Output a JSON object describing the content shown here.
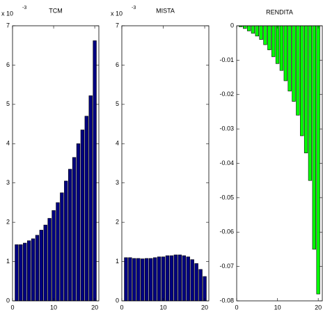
{
  "chart_data": [
    {
      "type": "bar",
      "title": "TCM",
      "multiplier": "x 10",
      "exponent": "-3",
      "color": "#000080",
      "x": [
        1,
        2,
        3,
        4,
        5,
        6,
        7,
        8,
        9,
        10,
        11,
        12,
        13,
        14,
        15,
        16,
        17,
        18,
        19,
        20
      ],
      "values": [
        1.43,
        1.43,
        1.47,
        1.53,
        1.58,
        1.67,
        1.8,
        1.93,
        2.1,
        2.3,
        2.5,
        2.75,
        3.05,
        3.35,
        3.65,
        4.0,
        4.35,
        4.7,
        5.22,
        6.62
      ],
      "xlim": [
        0,
        21
      ],
      "xticks": [
        0,
        10,
        20
      ],
      "ylim": [
        0,
        7
      ],
      "yticks": [
        0,
        1,
        2,
        3,
        4,
        5,
        6,
        7
      ]
    },
    {
      "type": "bar",
      "title": "MISTA",
      "multiplier": "x 10",
      "exponent": "-3",
      "color": "#000080",
      "x": [
        1,
        2,
        3,
        4,
        5,
        6,
        7,
        8,
        9,
        10,
        11,
        12,
        13,
        14,
        15,
        16,
        17,
        18,
        19,
        20
      ],
      "values": [
        1.1,
        1.1,
        1.08,
        1.08,
        1.07,
        1.08,
        1.08,
        1.1,
        1.12,
        1.12,
        1.15,
        1.15,
        1.17,
        1.17,
        1.15,
        1.12,
        1.05,
        0.95,
        0.8,
        0.62
      ],
      "xlim": [
        0,
        21
      ],
      "xticks": [
        0,
        10,
        20
      ],
      "ylim": [
        0,
        7
      ],
      "yticks": [
        0,
        1,
        2,
        3,
        4,
        5,
        6,
        7
      ]
    },
    {
      "type": "bar",
      "title": "RENDITA",
      "color": "#00ff00",
      "x": [
        1,
        2,
        3,
        4,
        5,
        6,
        7,
        8,
        9,
        10,
        11,
        12,
        13,
        14,
        15,
        16,
        17,
        18,
        19,
        20
      ],
      "values": [
        -0.0003,
        -0.0008,
        -0.0015,
        -0.0022,
        -0.003,
        -0.004,
        -0.0055,
        -0.007,
        -0.009,
        -0.011,
        -0.013,
        -0.016,
        -0.019,
        -0.022,
        -0.026,
        -0.032,
        -0.037,
        -0.045,
        -0.065,
        -0.078
      ],
      "xlim": [
        0,
        21
      ],
      "xticks": [
        0,
        10,
        20
      ],
      "ylim": [
        -0.08,
        0
      ],
      "yticks": [
        0,
        -0.01,
        -0.02,
        -0.03,
        -0.04,
        -0.05,
        -0.06,
        -0.07,
        -0.08
      ]
    }
  ]
}
